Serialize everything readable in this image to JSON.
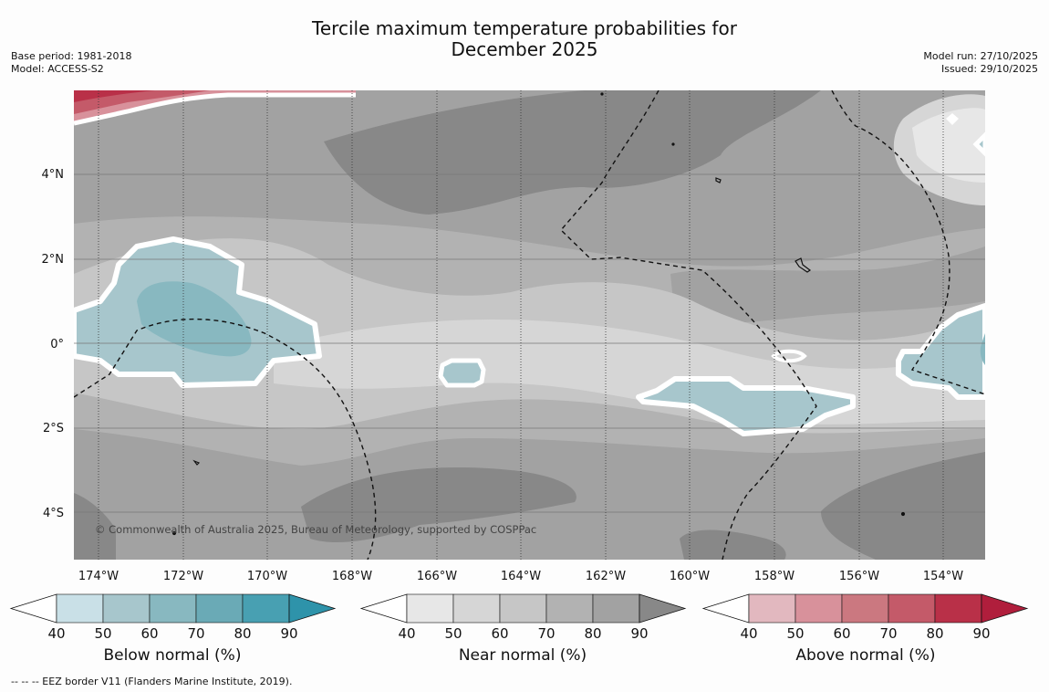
{
  "header": {
    "title_line1": "Tercile maximum temperature probabilities for",
    "title_line2": "December 2025",
    "base_period": "Base period: 1981-2018",
    "model": "Model: ACCESS-S2",
    "model_run": "Model run: 27/10/2025",
    "issued": "Issued: 29/10/2025"
  },
  "map": {
    "lat_labels": [
      "4°N",
      "2°N",
      "0°",
      "2°S",
      "4°S"
    ],
    "lon_labels": [
      "174°W",
      "172°W",
      "170°W",
      "168°W",
      "166°W",
      "164°W",
      "162°W",
      "160°W",
      "158°W",
      "156°W",
      "154°W"
    ],
    "copyright": "© Commonwealth of Australia 2025, Bureau of Meteorology, supported by COSPPac"
  },
  "colorbars": [
    {
      "title": "Below normal (%)",
      "ticks": [
        "40",
        "50",
        "60",
        "70",
        "80",
        "90"
      ],
      "colors": [
        "#c9e0e7",
        "#a7c6cc",
        "#88b8c0",
        "#6aaab6",
        "#48a0b2",
        "#2e93aa"
      ]
    },
    {
      "title": "Near normal (%)",
      "ticks": [
        "40",
        "50",
        "60",
        "70",
        "80",
        "90"
      ],
      "colors": [
        "#e7e7e7",
        "#d6d6d6",
        "#c6c6c6",
        "#b2b2b2",
        "#a2a2a2",
        "#888888"
      ]
    },
    {
      "title": "Above normal (%)",
      "ticks": [
        "40",
        "50",
        "60",
        "70",
        "80",
        "90"
      ],
      "colors": [
        "#e2b8bf",
        "#d8919b",
        "#cb7880",
        "#c45a69",
        "#b93048",
        "#b01e3c"
      ]
    }
  ],
  "footer": {
    "legend_text": "--  --  -- EEZ border V11 (Flanders Marine Institute, 2019)."
  }
}
